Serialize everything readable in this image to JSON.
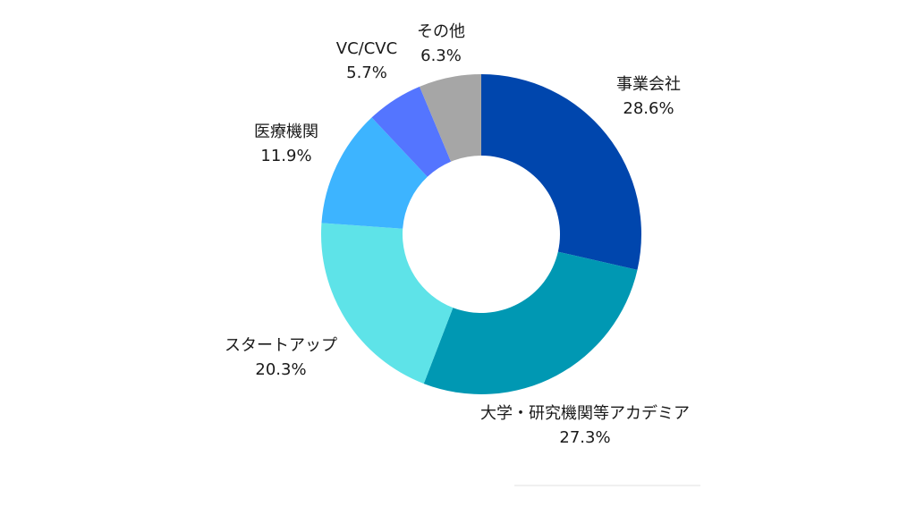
{
  "chart_data": {
    "type": "pie",
    "donut": true,
    "title": "",
    "categories": [
      "事業会社",
      "大学・研究機関等アカデミア",
      "スタートアップ",
      "医療機関",
      "VC/CVC",
      "その他"
    ],
    "values": [
      28.6,
      27.3,
      20.3,
      11.9,
      5.7,
      6.3
    ],
    "value_labels": [
      "28.6%",
      "27.3%",
      "20.3%",
      "11.9%",
      "5.7%",
      "6.3%"
    ],
    "colors": [
      "#0046AD",
      "#0098B3",
      "#5EE3E8",
      "#3DB4FF",
      "#5475FF",
      "#A6A6A6"
    ],
    "legend": "none",
    "start_angle": "top",
    "direction": "clockwise"
  }
}
